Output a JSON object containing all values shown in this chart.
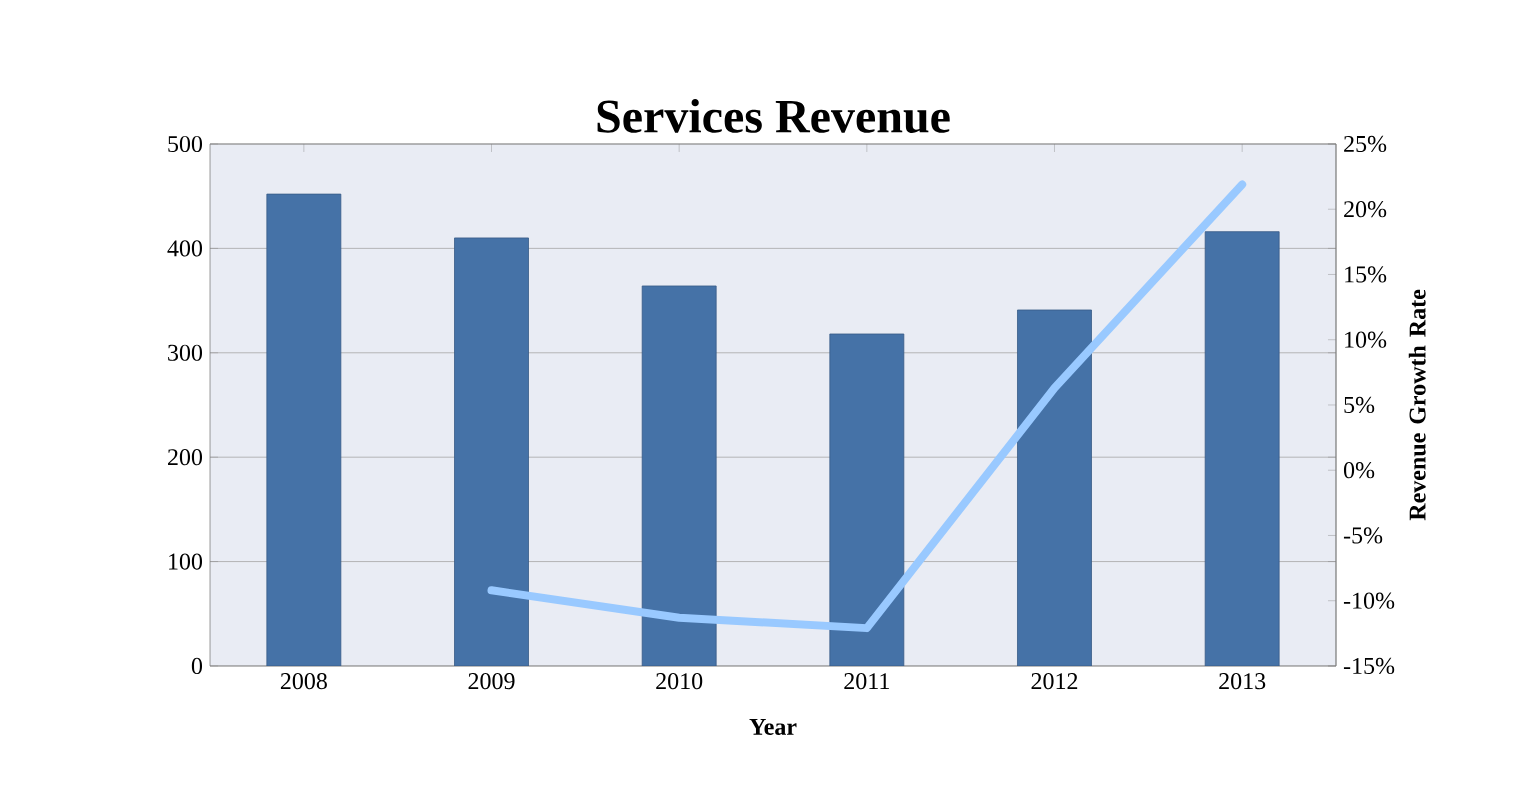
{
  "chart_data": {
    "type": "bar",
    "title": "Services Revenue",
    "xlabel": "Year",
    "y2label": "Revenue Growth Rate",
    "categories": [
      "2008",
      "2009",
      "2010",
      "2011",
      "2012",
      "2013"
    ],
    "series": [
      {
        "color": "#4572a7",
        "values": [
          452,
          410,
          364,
          318,
          341,
          416
        ]
      },
      {
        "type": "line",
        "axis": "y2",
        "color": "#99c9ff",
        "values": [
          null,
          -9.2,
          -11.3,
          -12.1,
          6.3,
          21.9
        ]
      }
    ],
    "ylim": [
      0,
      500
    ],
    "yticks": [
      0,
      100,
      200,
      300,
      400,
      500
    ],
    "y2lim": [
      -15,
      25
    ],
    "y2ticks": [
      {
        "value": -15,
        "label": "-15%"
      },
      {
        "value": -10,
        "label": "-10%"
      },
      {
        "value": -5,
        "label": "-5%"
      },
      {
        "value": 0,
        "label": "0%"
      },
      {
        "value": 5,
        "label": "5%"
      },
      {
        "value": 10,
        "label": "10%"
      },
      {
        "value": 15,
        "label": "15%"
      },
      {
        "value": 20,
        "label": "20%"
      },
      {
        "value": 25,
        "label": "25%"
      }
    ],
    "grid": "y"
  }
}
